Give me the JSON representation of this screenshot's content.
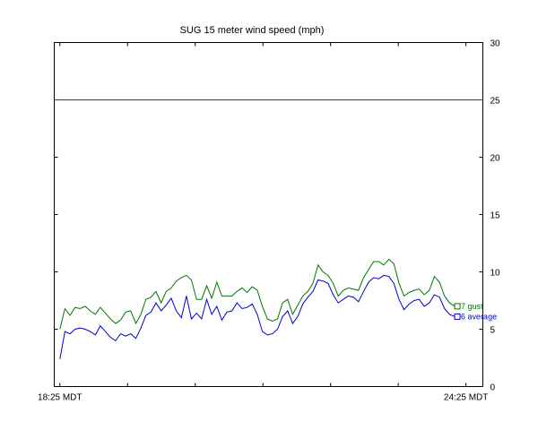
{
  "chart_data": {
    "type": "line",
    "title": "SUG 15 meter wind speed (mph)",
    "xlabel": "",
    "ylabel": "",
    "x_tick_labels": [
      "18:25 MDT",
      "24:25 MDT"
    ],
    "x_range_minutes": [
      0,
      380
    ],
    "ylim": [
      0,
      30
    ],
    "y_ticks": [
      0,
      5,
      10,
      15,
      20,
      25,
      30
    ],
    "y_axis_side": "right",
    "grid": false,
    "threshold": {
      "value": 25,
      "color": "#cc0000"
    },
    "series": [
      {
        "name": "gust",
        "legend_prefix": "7",
        "color": "#007700",
        "values": [
          5.0,
          6.8,
          6.2,
          6.9,
          6.8,
          7.0,
          6.6,
          6.3,
          6.9,
          6.4,
          5.9,
          5.5,
          5.8,
          6.5,
          6.6,
          5.5,
          6.3,
          7.6,
          7.8,
          8.3,
          7.3,
          8.3,
          8.6,
          9.2,
          9.5,
          9.7,
          9.3,
          7.6,
          7.6,
          8.8,
          7.7,
          9.1,
          7.9,
          7.9,
          7.9,
          8.3,
          8.6,
          8.2,
          8.7,
          8.4,
          7.0,
          5.9,
          5.7,
          5.9,
          7.3,
          7.6,
          6.3,
          7.1,
          7.9,
          8.3,
          9.0,
          10.6,
          10.0,
          9.7,
          9.0,
          7.9,
          8.4,
          8.6,
          8.5,
          8.4,
          9.5,
          10.2,
          10.9,
          10.9,
          10.6,
          11.1,
          10.7,
          9.0,
          7.9,
          8.2,
          8.4,
          8.5,
          8.0,
          8.4,
          9.6,
          9.1,
          7.9,
          7.3,
          7.0
        ]
      },
      {
        "name": "average",
        "legend_prefix": "6",
        "color": "#0000cc",
        "values": [
          2.4,
          4.8,
          4.6,
          5.0,
          5.1,
          5.0,
          4.8,
          4.5,
          5.3,
          4.8,
          4.3,
          4.0,
          4.6,
          4.4,
          4.6,
          4.2,
          5.1,
          6.2,
          6.5,
          7.3,
          6.6,
          7.1,
          7.7,
          6.6,
          6.0,
          7.9,
          5.9,
          6.4,
          5.9,
          7.6,
          6.3,
          7.0,
          5.8,
          6.5,
          6.6,
          7.3,
          6.8,
          6.9,
          7.2,
          6.3,
          4.8,
          4.5,
          4.6,
          5.0,
          6.1,
          6.6,
          5.5,
          6.1,
          7.2,
          7.8,
          8.3,
          9.3,
          9.2,
          9.0,
          8.0,
          7.3,
          7.6,
          7.9,
          7.8,
          7.4,
          8.3,
          9.1,
          9.5,
          9.4,
          9.7,
          9.6,
          9.0,
          7.6,
          6.7,
          7.2,
          7.5,
          7.6,
          7.0,
          7.3,
          8.0,
          7.8,
          6.8,
          6.3,
          6.1
        ]
      }
    ]
  }
}
